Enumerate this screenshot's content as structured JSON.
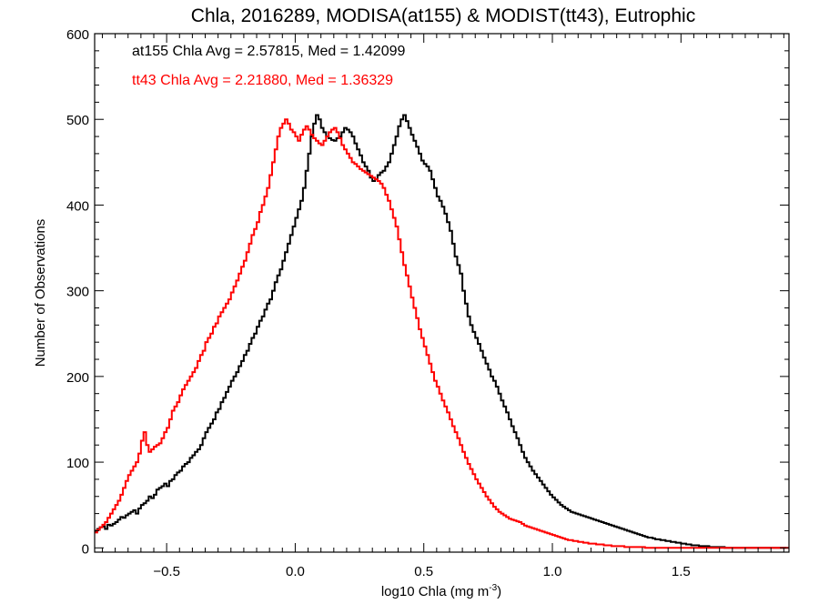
{
  "chart_data": {
    "type": "line",
    "title": "Chla, 2016289, MODISA(at155) & MODIST(tt43), Eutrophic",
    "xlabel_main": "log10 Chla (mg m",
    "xlabel_sup": "-3",
    "xlabel_end": ")",
    "ylabel": "Number of Observations",
    "xlim": [
      -0.78,
      1.92
    ],
    "ylim": [
      -5,
      600
    ],
    "xticks": [
      -0.5,
      0.0,
      0.5,
      1.0,
      1.5
    ],
    "xtick_labels": [
      "−0.5",
      "0.0",
      "0.5",
      "1.0",
      "1.5"
    ],
    "yticks": [
      0,
      100,
      200,
      300,
      400,
      500,
      600
    ],
    "ytick_labels": [
      "0",
      "100",
      "200",
      "300",
      "400",
      "500",
      "600"
    ],
    "grid": false,
    "annotations": [
      {
        "text": "at155 Chla Avg = 2.57815, Med = 1.42099",
        "color": "#000000"
      },
      {
        "text": "tt43 Chla Avg = 2.21880, Med = 1.36329",
        "color": "#ff0000"
      }
    ],
    "bin_width": 0.01,
    "bin_start": -0.78,
    "series": [
      {
        "color": "#000000",
        "values": [
          20,
          22,
          24,
          25,
          22,
          27,
          26,
          28,
          30,
          33,
          36,
          35,
          38,
          40,
          42,
          44,
          40,
          46,
          50,
          52,
          55,
          60,
          58,
          62,
          68,
          70,
          72,
          75,
          72,
          78,
          80,
          85,
          88,
          90,
          95,
          98,
          100,
          105,
          108,
          112,
          115,
          120,
          128,
          135,
          140,
          145,
          150,
          158,
          162,
          170,
          175,
          182,
          188,
          195,
          200,
          205,
          212,
          218,
          225,
          230,
          238,
          245,
          250,
          258,
          265,
          270,
          278,
          285,
          290,
          300,
          310,
          318,
          325,
          335,
          345,
          355,
          365,
          375,
          385,
          395,
          405,
          420,
          440,
          460,
          480,
          495,
          505,
          500,
          490,
          485,
          480,
          478,
          476,
          475,
          478,
          480,
          485,
          490,
          488,
          485,
          480,
          472,
          465,
          458,
          450,
          445,
          440,
          432,
          428,
          430,
          435,
          438,
          440,
          445,
          450,
          460,
          470,
          480,
          492,
          500,
          505,
          498,
          490,
          482,
          475,
          468,
          460,
          452,
          448,
          445,
          440,
          430,
          420,
          410,
          405,
          398,
          390,
          380,
          370,
          355,
          340,
          330,
          320,
          300,
          285,
          270,
          260,
          252,
          245,
          238,
          230,
          222,
          215,
          208,
          200,
          195,
          188,
          180,
          172,
          165,
          158,
          150,
          142,
          135,
          128,
          120,
          112,
          105,
          100,
          95,
          90,
          86,
          82,
          78,
          74,
          70,
          66,
          62,
          59,
          56,
          53,
          50,
          48,
          46,
          44,
          42,
          41,
          40,
          39,
          38,
          37,
          36,
          35,
          34,
          33,
          32,
          31,
          30,
          29,
          28,
          27,
          26,
          25,
          24,
          23,
          22,
          21,
          20,
          19,
          18,
          17,
          16,
          15,
          14,
          13,
          12,
          12,
          11,
          10,
          10,
          9,
          9,
          8,
          8,
          7,
          7,
          6,
          6,
          5,
          5,
          4,
          4,
          3,
          3,
          3,
          2,
          2,
          2,
          2,
          1,
          1,
          1,
          1,
          1,
          1,
          0,
          0,
          0,
          0,
          0,
          0,
          0,
          0,
          0,
          0,
          0,
          0,
          0,
          0,
          0,
          0,
          0,
          0,
          0,
          0,
          0,
          0,
          0,
          0
        ]
      },
      {
        "color": "#ff0000",
        "values": [
          18,
          21,
          24,
          27,
          30,
          35,
          40,
          45,
          50,
          55,
          62,
          70,
          78,
          85,
          90,
          95,
          100,
          110,
          125,
          135,
          120,
          112,
          115,
          118,
          120,
          122,
          128,
          135,
          140,
          150,
          160,
          165,
          170,
          178,
          185,
          190,
          195,
          200,
          205,
          210,
          218,
          225,
          230,
          240,
          245,
          250,
          258,
          262,
          270,
          275,
          280,
          285,
          290,
          298,
          305,
          312,
          320,
          328,
          335,
          345,
          355,
          365,
          372,
          380,
          392,
          400,
          410,
          420,
          435,
          450,
          465,
          480,
          490,
          495,
          500,
          495,
          488,
          485,
          480,
          475,
          482,
          488,
          492,
          488,
          482,
          478,
          475,
          472,
          470,
          475,
          480,
          485,
          488,
          490,
          485,
          478,
          470,
          465,
          460,
          455,
          450,
          448,
          445,
          442,
          440,
          438,
          436,
          434,
          432,
          430,
          428,
          425,
          420,
          412,
          405,
          395,
          385,
          375,
          360,
          345,
          330,
          318,
          305,
          292,
          280,
          268,
          255,
          245,
          235,
          225,
          215,
          205,
          195,
          188,
          180,
          172,
          165,
          158,
          150,
          142,
          135,
          128,
          120,
          112,
          105,
          98,
          92,
          86,
          80,
          75,
          70,
          65,
          60,
          56,
          52,
          48,
          45,
          42,
          40,
          38,
          36,
          34,
          33,
          32,
          31,
          30,
          28,
          26,
          25,
          24,
          23,
          22,
          21,
          20,
          19,
          18,
          17,
          16,
          15,
          14,
          13,
          12,
          11,
          10,
          9,
          9,
          8,
          8,
          7,
          7,
          6,
          6,
          5,
          5,
          5,
          4,
          4,
          4,
          3,
          3,
          3,
          2,
          2,
          2,
          2,
          2,
          1,
          1,
          1,
          1,
          1,
          1,
          1,
          1,
          0,
          0,
          0,
          0,
          0,
          0,
          0,
          0,
          0,
          0,
          0,
          0,
          0,
          0,
          0,
          0,
          0,
          0,
          0,
          0,
          0,
          0,
          0,
          0,
          0,
          0,
          0,
          0,
          0,
          0,
          0,
          0,
          0,
          0,
          0,
          0,
          0,
          0,
          0,
          0,
          0,
          0,
          0,
          0,
          0,
          0,
          0,
          0,
          0,
          0,
          0,
          0,
          0,
          0,
          0,
          0
        ]
      }
    ]
  }
}
